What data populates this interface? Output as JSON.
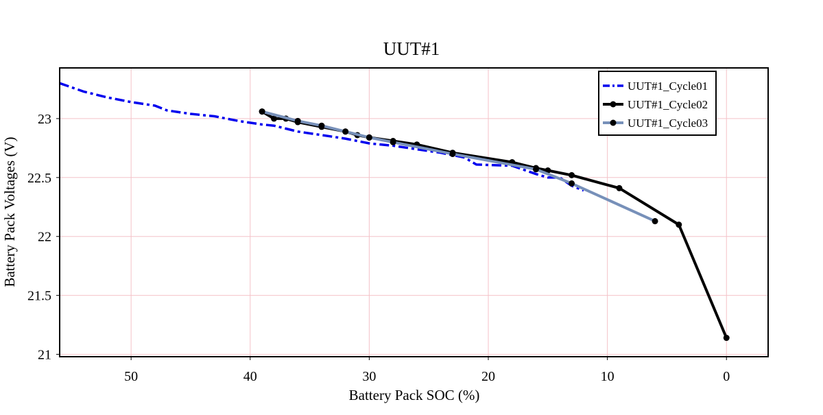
{
  "chart_data": {
    "type": "line",
    "title": "UUT#1",
    "xlabel": "Battery Pack SOC (%)",
    "ylabel": "Battery Pack Voltages (V)",
    "xlim": [
      56,
      -3.5
    ],
    "x_reversed": true,
    "ylim": [
      20.98,
      23.43
    ],
    "x_ticks": [
      50,
      40,
      30,
      20,
      10,
      0
    ],
    "y_ticks": [
      21,
      21.5,
      22,
      22.5,
      23
    ],
    "grid": true,
    "grid_color": "#f4c2c8",
    "legend_position": "top-right",
    "series": [
      {
        "name": "UUT#1_Cycle01",
        "color": "#0000ee",
        "line_style": "dashdot",
        "markers": false,
        "x": [
          56,
          54,
          52,
          50,
          48,
          47,
          45,
          43,
          41,
          39,
          38,
          36,
          34,
          32,
          30,
          28,
          26,
          24,
          22,
          21,
          18,
          16,
          15,
          14,
          13,
          12
        ],
        "y": [
          23.3,
          23.23,
          23.18,
          23.14,
          23.11,
          23.07,
          23.04,
          23.02,
          22.98,
          22.95,
          22.94,
          22.89,
          22.86,
          22.83,
          22.79,
          22.77,
          22.74,
          22.71,
          22.67,
          22.61,
          22.6,
          22.53,
          22.5,
          22.5,
          22.43,
          22.39
        ]
      },
      {
        "name": "UUT#1_Cycle02",
        "color": "#000000",
        "line_style": "solid",
        "markers": true,
        "x": [
          39,
          38,
          37,
          36,
          34,
          32,
          31,
          30,
          28,
          26,
          23,
          18,
          16,
          15,
          13,
          9,
          4,
          0
        ],
        "y": [
          23.06,
          23.0,
          23.0,
          22.97,
          22.93,
          22.89,
          22.86,
          22.84,
          22.81,
          22.78,
          22.71,
          22.63,
          22.58,
          22.56,
          22.52,
          22.41,
          22.1,
          21.14
        ]
      },
      {
        "name": "UUT#1_Cycle03",
        "color": "#7790b9",
        "line_style": "solid",
        "markers": true,
        "marker_color": "#000000",
        "x": [
          39,
          36,
          34,
          32,
          30,
          28,
          23,
          16,
          13,
          6
        ],
        "y": [
          23.06,
          22.98,
          22.94,
          22.89,
          22.84,
          22.8,
          22.7,
          22.57,
          22.45,
          22.13
        ]
      }
    ]
  }
}
